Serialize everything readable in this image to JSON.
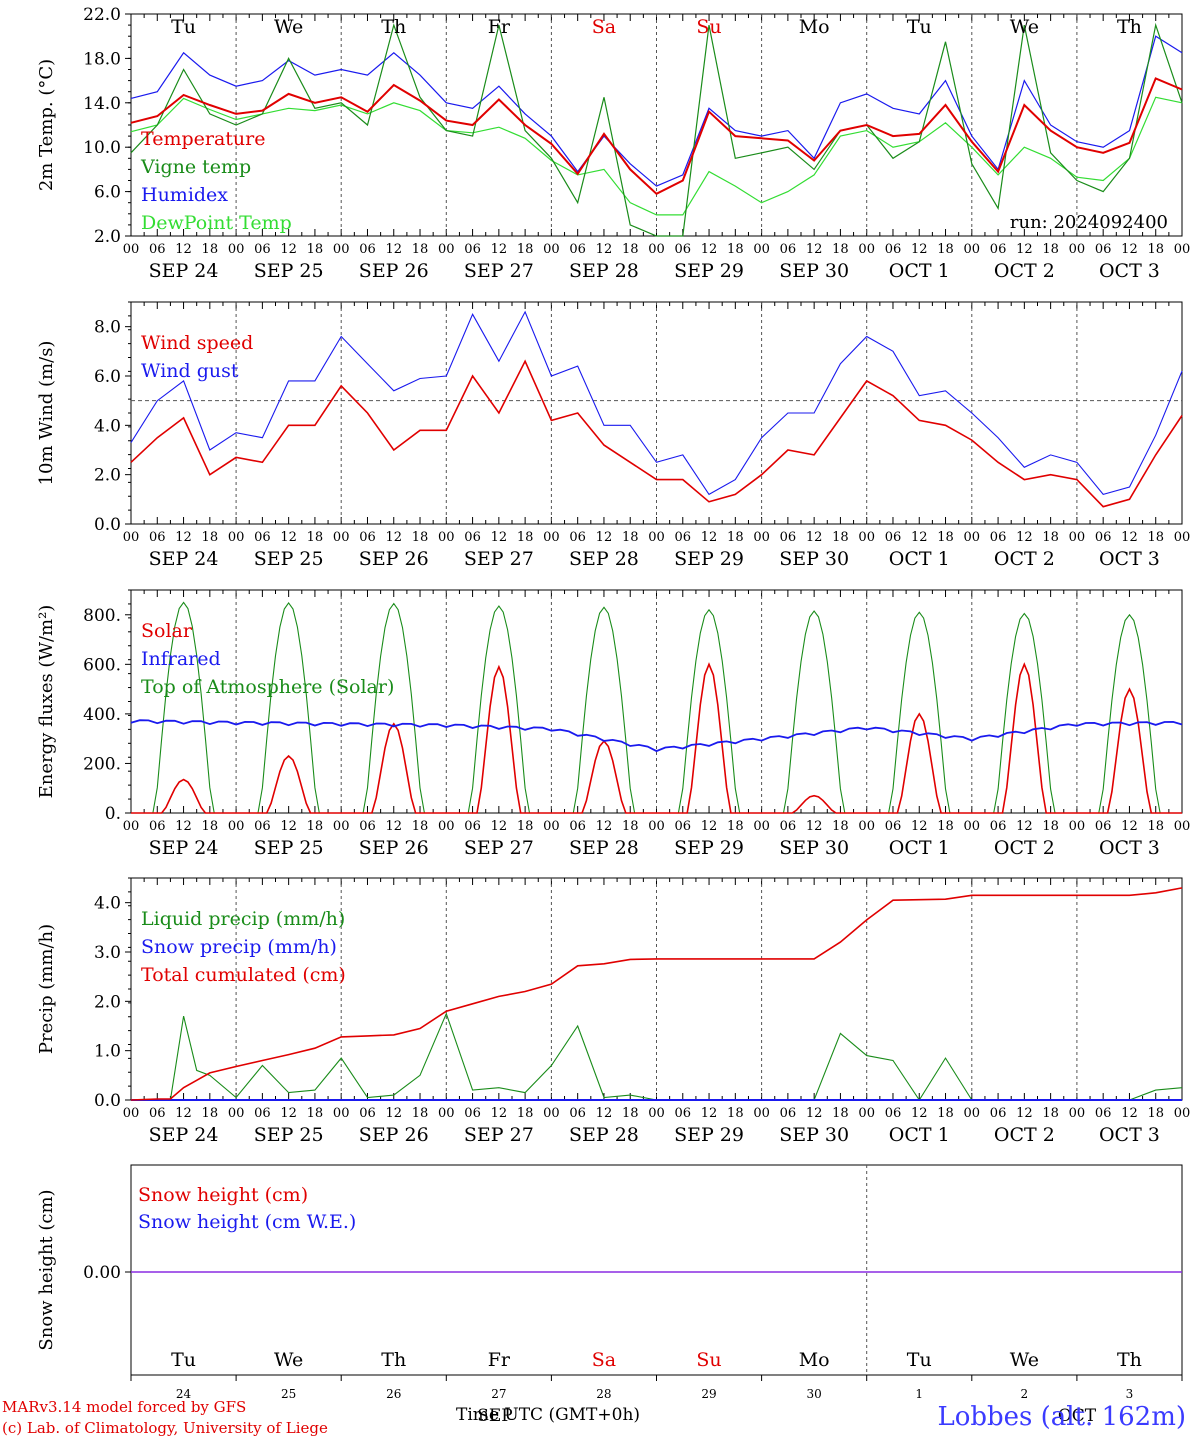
{
  "chart_data": [
    {
      "type": "line",
      "ylabel": "2m Temp. (°C)",
      "ylim": [
        2.0,
        22.0
      ],
      "yticks": [
        "2.0",
        "6.0",
        "10.0",
        "14.0",
        "18.0",
        "22.0"
      ],
      "run_label": "run: 2024092400",
      "x_hours": [
        0,
        6,
        12,
        18,
        24,
        30,
        36,
        42,
        48,
        54,
        60,
        66,
        72,
        78,
        84,
        90,
        96,
        102,
        108,
        114,
        120,
        126,
        132,
        138,
        144,
        150,
        156,
        162,
        168,
        174,
        180,
        186,
        192,
        198,
        204,
        210,
        216,
        222,
        228,
        234,
        240
      ],
      "series": [
        {
          "name": "Temperature",
          "color": "#e00000",
          "values": [
            12.2,
            12.8,
            14.7,
            13.8,
            13.0,
            13.3,
            14.8,
            14.0,
            14.5,
            13.2,
            15.6,
            14.2,
            12.4,
            12.0,
            14.3,
            12.0,
            10.3,
            7.6,
            11.2,
            8.0,
            5.8,
            7.0,
            13.2,
            11.0,
            10.8,
            10.6,
            8.8,
            11.5,
            12.0,
            11.0,
            11.2,
            13.8,
            10.5,
            7.8,
            13.8,
            11.5,
            10.0,
            9.5,
            10.4,
            16.2,
            15.2
          ]
        },
        {
          "name": "Vigne temp",
          "color": "#1a8c1a",
          "values": [
            9.5,
            12.0,
            17.0,
            13.0,
            12.0,
            13.0,
            18.0,
            13.5,
            14.0,
            12.0,
            21.0,
            14.5,
            11.5,
            11.0,
            21.0,
            11.5,
            9.0,
            5.0,
            14.5,
            3.0,
            2.0,
            2.0,
            21.0,
            9.0,
            9.5,
            10.0,
            8.0,
            11.5,
            12.0,
            9.0,
            10.5,
            19.5,
            8.5,
            4.5,
            21.0,
            9.5,
            7.0,
            6.0,
            9.0,
            21.0,
            14.0
          ]
        },
        {
          "name": "Humidex",
          "color": "#1a1aee",
          "values": [
            14.4,
            15.0,
            18.5,
            16.5,
            15.5,
            16.0,
            17.8,
            16.5,
            17.0,
            16.5,
            18.5,
            16.5,
            14.0,
            13.5,
            15.5,
            13.0,
            11.0,
            7.8,
            11.0,
            8.5,
            6.5,
            7.5,
            13.5,
            11.5,
            11.0,
            11.5,
            9.0,
            14.0,
            14.8,
            13.5,
            13.0,
            16.0,
            11.0,
            8.0,
            16.0,
            12.0,
            10.5,
            10.0,
            11.5,
            20.0,
            18.5
          ]
        },
        {
          "name": "DewPoint Temp",
          "color": "#33dd33",
          "values": [
            11.4,
            12.0,
            14.4,
            13.4,
            12.5,
            13.0,
            13.5,
            13.3,
            13.8,
            13.0,
            14.0,
            13.3,
            11.5,
            11.3,
            11.8,
            10.8,
            8.8,
            7.5,
            8.0,
            5.0,
            3.9,
            3.9,
            7.8,
            6.5,
            5.0,
            6.0,
            7.5,
            11.0,
            11.5,
            10.0,
            10.5,
            12.2,
            10.0,
            7.5,
            10.0,
            9.0,
            7.3,
            7.0,
            9.0,
            14.5,
            14.0
          ]
        }
      ]
    },
    {
      "type": "line",
      "ylabel": "10m Wind (m/s)",
      "ylim": [
        0.0,
        9.0
      ],
      "yticks": [
        "0.0",
        "2.0",
        "4.0",
        "6.0",
        "8.0"
      ],
      "reference_line": 5.0,
      "x_hours": [
        0,
        6,
        12,
        18,
        24,
        30,
        36,
        42,
        48,
        54,
        60,
        66,
        72,
        78,
        84,
        90,
        96,
        102,
        108,
        114,
        120,
        126,
        132,
        138,
        144,
        150,
        156,
        162,
        168,
        174,
        180,
        186,
        192,
        198,
        204,
        210,
        216,
        222,
        228,
        234,
        240
      ],
      "series": [
        {
          "name": "Wind speed",
          "color": "#e00000",
          "values": [
            2.5,
            3.5,
            4.3,
            2.0,
            2.7,
            2.5,
            4.0,
            4.0,
            5.6,
            4.5,
            3.0,
            3.8,
            3.8,
            6.0,
            4.5,
            6.6,
            4.2,
            4.5,
            3.2,
            2.5,
            1.8,
            1.8,
            0.9,
            1.2,
            2.0,
            3.0,
            2.8,
            4.3,
            5.8,
            5.2,
            4.2,
            4.0,
            3.4,
            2.5,
            1.8,
            2.0,
            1.8,
            0.7,
            1.0,
            2.8,
            4.4
          ]
        },
        {
          "name": "Wind gust",
          "color": "#1a1aee",
          "values": [
            3.3,
            5.0,
            5.8,
            3.0,
            3.7,
            3.5,
            5.8,
            5.8,
            7.6,
            6.5,
            5.4,
            5.9,
            6.0,
            8.5,
            6.6,
            8.6,
            6.0,
            6.4,
            4.0,
            4.0,
            2.5,
            2.8,
            1.2,
            1.8,
            3.5,
            4.5,
            4.5,
            6.5,
            7.6,
            7.0,
            5.2,
            5.4,
            4.5,
            3.5,
            2.3,
            2.8,
            2.5,
            1.2,
            1.5,
            3.6,
            6.2
          ]
        }
      ]
    },
    {
      "type": "line",
      "ylabel": "Energy fluxes (W/m²)",
      "ylim": [
        0,
        900
      ],
      "yticks": [
        "0.",
        "200.",
        "400.",
        "600.",
        "800."
      ],
      "solar_peaks": [
        135,
        230,
        360,
        590,
        290,
        600,
        70,
        400,
        600,
        500
      ],
      "toa_peaks": [
        850,
        848,
        845,
        835,
        830,
        820,
        815,
        810,
        805,
        800
      ],
      "infrared_daily": [
        372,
        365,
        360,
        355,
        340,
        258,
        300,
        345,
        300,
        360,
        365
      ],
      "series": [
        {
          "name": "Solar",
          "color": "#e00000"
        },
        {
          "name": "Infrared",
          "color": "#1a1aee"
        },
        {
          "name": "Top of Atmosphere (Solar)",
          "color": "#1a8c1a"
        }
      ]
    },
    {
      "type": "line",
      "ylabel": "Precip (mm/h)",
      "ylim": [
        0.0,
        4.5
      ],
      "yticks": [
        "0.0",
        "1.0",
        "2.0",
        "3.0",
        "4.0"
      ],
      "x_hours": [
        0,
        6,
        9,
        12,
        15,
        18,
        24,
        30,
        36,
        42,
        48,
        54,
        60,
        66,
        72,
        78,
        84,
        90,
        96,
        102,
        108,
        114,
        120,
        126,
        132,
        138,
        144,
        150,
        156,
        162,
        168,
        174,
        180,
        186,
        192,
        198,
        204,
        210,
        216,
        222,
        228,
        234,
        240
      ],
      "series": [
        {
          "name": "Liquid precip (mm/h)",
          "color": "#1a8c1a",
          "values": [
            0.0,
            0.02,
            0.0,
            1.7,
            0.6,
            0.5,
            0.05,
            0.7,
            0.15,
            0.2,
            0.85,
            0.05,
            0.1,
            0.5,
            1.75,
            0.2,
            0.25,
            0.15,
            0.7,
            1.5,
            0.05,
            0.1,
            0.0,
            0.0,
            0.0,
            0.0,
            0.0,
            0.0,
            0.0,
            1.35,
            0.9,
            0.8,
            0.0,
            0.85,
            0.0,
            0.0,
            0.0,
            0.0,
            0.0,
            0.0,
            0.0,
            0.2,
            0.25
          ]
        },
        {
          "name": "Snow precip (mm/h)",
          "color": "#1a1aee",
          "values": [
            0,
            0,
            0,
            0,
            0,
            0,
            0,
            0,
            0,
            0,
            0,
            0,
            0,
            0,
            0,
            0,
            0,
            0,
            0,
            0,
            0,
            0,
            0,
            0,
            0,
            0,
            0,
            0,
            0,
            0,
            0,
            0,
            0,
            0,
            0,
            0,
            0,
            0,
            0,
            0,
            0,
            0,
            0
          ]
        },
        {
          "name": "Total cumulated (cm)",
          "color": "#e00000",
          "values": [
            0.0,
            0.02,
            0.02,
            0.25,
            0.4,
            0.55,
            0.68,
            0.8,
            0.92,
            1.05,
            1.28,
            1.3,
            1.32,
            1.45,
            1.8,
            1.95,
            2.1,
            2.2,
            2.35,
            2.72,
            2.76,
            2.85,
            2.86,
            2.86,
            2.86,
            2.86,
            2.86,
            2.86,
            2.86,
            3.2,
            3.65,
            4.05,
            4.06,
            4.07,
            4.15,
            4.15,
            4.15,
            4.15,
            4.15,
            4.15,
            4.15,
            4.2,
            4.3
          ]
        }
      ]
    },
    {
      "type": "line",
      "ylabel": "Snow height (cm)",
      "yticks": [
        "0.00"
      ],
      "series": [
        {
          "name": "Snow height (cm)",
          "color": "#e00000",
          "values": [
            0,
            0
          ]
        },
        {
          "name": "Snow height (cm W.E.)",
          "color": "#1a1aee",
          "values": [
            0,
            0
          ]
        }
      ]
    }
  ],
  "axis": {
    "hour_ticks": [
      "00",
      "06",
      "12",
      "18"
    ],
    "end_tick": "00",
    "date_labels": [
      "SEP 24",
      "SEP 25",
      "SEP 26",
      "SEP 27",
      "SEP 28",
      "SEP 29",
      "SEP 30",
      "OCT  1",
      "OCT  2",
      "OCT  3"
    ],
    "weekday_labels": [
      "Tu",
      "We",
      "Th",
      "Fr",
      "Sa",
      "Su",
      "Mo",
      "Tu",
      "We",
      "Th"
    ],
    "weekday_colors": [
      "#000000",
      "#000000",
      "#000000",
      "#000000",
      "#e00000",
      "#e00000",
      "#000000",
      "#000000",
      "#000000",
      "#000000"
    ],
    "day_numbers": [
      "24",
      "25",
      "26",
      "27",
      "28",
      "29",
      "30",
      "1",
      "2",
      "3"
    ],
    "month_labels": [
      "SEP",
      "OCT"
    ]
  },
  "footer": {
    "model_line": "MARv3.14 model forced by GFS",
    "credit_line": "(c) Lab. of Climatology, University of Liege",
    "time_axis_label": "Time UTC (GMT+0h)",
    "station": "Lobbes (alt. 162m)"
  }
}
